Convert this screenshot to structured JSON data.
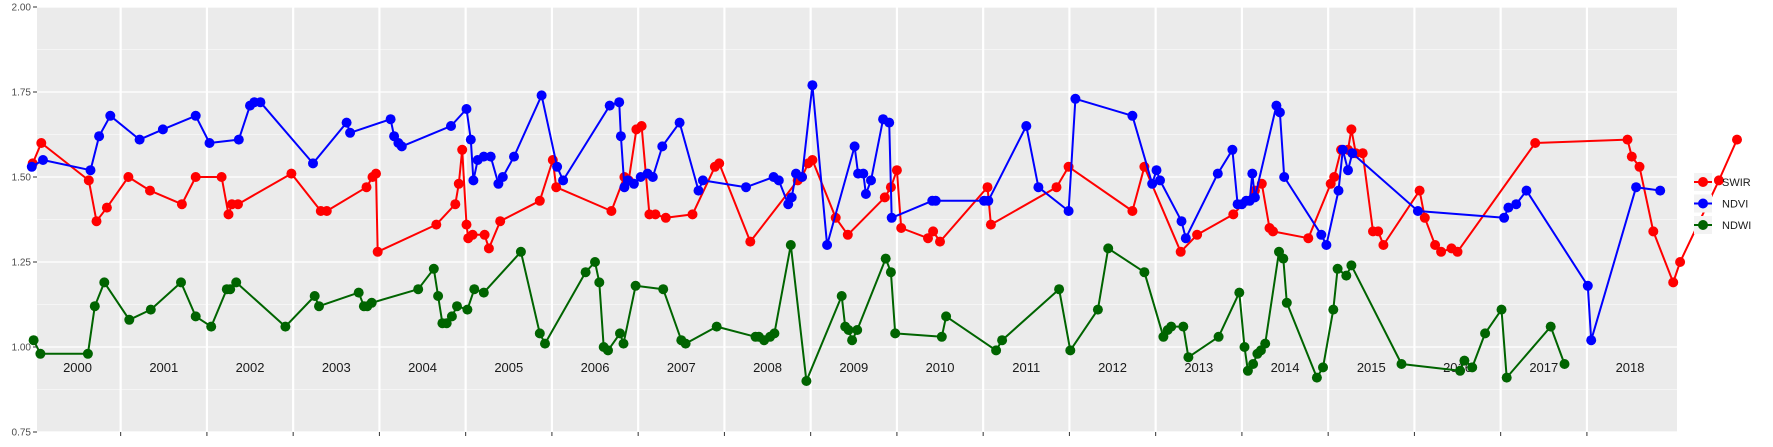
{
  "chart_data": {
    "type": "line",
    "title": "",
    "xlabel": "",
    "ylabel": "",
    "ylim": [
      0.75,
      2.0
    ],
    "yticks": [
      "0.75",
      "1.00",
      "1.25",
      "1.50",
      "1.75",
      "2.00"
    ],
    "year_labels": [
      "2000",
      "2001",
      "2002",
      "2003",
      "2004",
      "2005",
      "2006",
      "2007",
      "2008",
      "2009",
      "2010",
      "2011",
      "2012",
      "2013",
      "2014",
      "2015",
      "2016",
      "2017",
      "2018"
    ],
    "grid": true,
    "background": "#ebebeb",
    "legend_position": "right",
    "series": [
      {
        "name": "SWIR",
        "color": "#ff0000",
        "points": [
          [
            1999.98,
            1.54
          ],
          [
            2000.08,
            1.6
          ],
          [
            2000.63,
            1.49
          ],
          [
            2000.72,
            1.37
          ],
          [
            2000.84,
            1.41
          ],
          [
            2001.09,
            1.5
          ],
          [
            2001.34,
            1.46
          ],
          [
            2001.71,
            1.42
          ],
          [
            2001.87,
            1.5
          ],
          [
            2002.17,
            1.5
          ],
          [
            2002.25,
            1.39
          ],
          [
            2002.29,
            1.42
          ],
          [
            2002.36,
            1.42
          ],
          [
            2002.98,
            1.51
          ],
          [
            2003.32,
            1.4
          ],
          [
            2003.39,
            1.4
          ],
          [
            2003.85,
            1.47
          ],
          [
            2003.92,
            1.5
          ],
          [
            2003.96,
            1.51
          ],
          [
            2003.98,
            1.28
          ],
          [
            2004.66,
            1.36
          ],
          [
            2004.88,
            1.42
          ],
          [
            2004.92,
            1.48
          ],
          [
            2004.96,
            1.58
          ],
          [
            2005.01,
            1.36
          ],
          [
            2005.03,
            1.32
          ],
          [
            2005.08,
            1.33
          ],
          [
            2005.22,
            1.33
          ],
          [
            2005.27,
            1.29
          ],
          [
            2005.4,
            1.37
          ],
          [
            2005.86,
            1.43
          ],
          [
            2006.01,
            1.55
          ],
          [
            2006.05,
            1.47
          ],
          [
            2006.69,
            1.4
          ],
          [
            2006.84,
            1.5
          ],
          [
            2006.89,
            1.49
          ],
          [
            2006.98,
            1.64
          ],
          [
            2007.04,
            1.65
          ],
          [
            2007.13,
            1.39
          ],
          [
            2007.2,
            1.39
          ],
          [
            2007.32,
            1.38
          ],
          [
            2007.63,
            1.39
          ],
          [
            2007.89,
            1.53
          ],
          [
            2007.94,
            1.54
          ],
          [
            2008.3,
            1.31
          ],
          [
            2008.85,
            1.49
          ],
          [
            2008.9,
            1.5
          ],
          [
            2008.97,
            1.54
          ],
          [
            2009.02,
            1.55
          ],
          [
            2009.29,
            1.38
          ],
          [
            2009.43,
            1.33
          ],
          [
            2009.86,
            1.44
          ],
          [
            2009.93,
            1.47
          ],
          [
            2010.0,
            1.52
          ],
          [
            2010.05,
            1.35
          ],
          [
            2010.36,
            1.32
          ],
          [
            2010.42,
            1.34
          ],
          [
            2010.5,
            1.31
          ],
          [
            2011.05,
            1.47
          ],
          [
            2011.09,
            1.36
          ],
          [
            2011.85,
            1.47
          ],
          [
            2011.99,
            1.53
          ],
          [
            2012.73,
            1.4
          ],
          [
            2012.87,
            1.53
          ],
          [
            2013.29,
            1.28
          ],
          [
            2013.48,
            1.33
          ],
          [
            2013.9,
            1.39
          ],
          [
            2014.15,
            1.46
          ],
          [
            2014.23,
            1.48
          ],
          [
            2014.32,
            1.35
          ],
          [
            2014.36,
            1.34
          ],
          [
            2014.77,
            1.32
          ],
          [
            2015.03,
            1.48
          ],
          [
            2015.07,
            1.5
          ],
          [
            2015.15,
            1.58
          ],
          [
            2015.23,
            1.58
          ],
          [
            2015.27,
            1.64
          ],
          [
            2015.32,
            1.57
          ],
          [
            2015.4,
            1.57
          ],
          [
            2015.52,
            1.34
          ],
          [
            2015.58,
            1.34
          ],
          [
            2015.64,
            1.3
          ],
          [
            2016.06,
            1.46
          ],
          [
            2016.12,
            1.38
          ],
          [
            2016.24,
            1.3
          ],
          [
            2016.31,
            1.28
          ],
          [
            2016.43,
            1.29
          ],
          [
            2016.5,
            1.28
          ],
          [
            2017.4,
            1.6
          ],
          [
            2018.47,
            1.61
          ],
          [
            2018.52,
            1.56
          ],
          [
            2018.61,
            1.53
          ],
          [
            2018.77,
            1.34
          ],
          [
            2019.0,
            1.19
          ],
          [
            2019.08,
            1.25
          ],
          [
            2019.53,
            1.49
          ],
          [
            2019.74,
            1.61
          ]
        ]
      },
      {
        "name": "NDVI",
        "color": "#0000ff",
        "points": [
          [
            1999.97,
            1.53
          ],
          [
            2000.1,
            1.55
          ],
          [
            2000.65,
            1.52
          ],
          [
            2000.75,
            1.62
          ],
          [
            2000.88,
            1.68
          ],
          [
            2001.22,
            1.61
          ],
          [
            2001.49,
            1.64
          ],
          [
            2001.87,
            1.68
          ],
          [
            2002.03,
            1.6
          ],
          [
            2002.37,
            1.61
          ],
          [
            2002.5,
            1.71
          ],
          [
            2002.55,
            1.72
          ],
          [
            2002.62,
            1.72
          ],
          [
            2003.23,
            1.54
          ],
          [
            2003.62,
            1.66
          ],
          [
            2003.66,
            1.63
          ],
          [
            2004.13,
            1.67
          ],
          [
            2004.17,
            1.62
          ],
          [
            2004.22,
            1.6
          ],
          [
            2004.26,
            1.59
          ],
          [
            2004.83,
            1.65
          ],
          [
            2005.01,
            1.7
          ],
          [
            2005.06,
            1.61
          ],
          [
            2005.09,
            1.49
          ],
          [
            2005.14,
            1.55
          ],
          [
            2005.21,
            1.56
          ],
          [
            2005.29,
            1.56
          ],
          [
            2005.38,
            1.48
          ],
          [
            2005.43,
            1.5
          ],
          [
            2005.56,
            1.56
          ],
          [
            2005.88,
            1.74
          ],
          [
            2006.06,
            1.53
          ],
          [
            2006.13,
            1.49
          ],
          [
            2006.67,
            1.71
          ],
          [
            2006.78,
            1.72
          ],
          [
            2006.8,
            1.62
          ],
          [
            2006.84,
            1.47
          ],
          [
            2006.88,
            1.49
          ],
          [
            2006.95,
            1.48
          ],
          [
            2007.03,
            1.5
          ],
          [
            2007.11,
            1.51
          ],
          [
            2007.17,
            1.5
          ],
          [
            2007.28,
            1.59
          ],
          [
            2007.48,
            1.66
          ],
          [
            2007.7,
            1.46
          ],
          [
            2007.75,
            1.49
          ],
          [
            2008.25,
            1.47
          ],
          [
            2008.57,
            1.5
          ],
          [
            2008.63,
            1.49
          ],
          [
            2008.74,
            1.42
          ],
          [
            2008.78,
            1.44
          ],
          [
            2008.83,
            1.51
          ],
          [
            2008.9,
            1.5
          ],
          [
            2009.02,
            1.77
          ],
          [
            2009.19,
            1.3
          ],
          [
            2009.51,
            1.59
          ],
          [
            2009.55,
            1.51
          ],
          [
            2009.61,
            1.51
          ],
          [
            2009.64,
            1.45
          ],
          [
            2009.7,
            1.49
          ],
          [
            2009.84,
            1.67
          ],
          [
            2009.91,
            1.66
          ],
          [
            2009.94,
            1.38
          ],
          [
            2010.41,
            1.43
          ],
          [
            2010.45,
            1.43
          ],
          [
            2011.01,
            1.43
          ],
          [
            2011.06,
            1.43
          ],
          [
            2011.5,
            1.65
          ],
          [
            2011.64,
            1.47
          ],
          [
            2011.99,
            1.4
          ],
          [
            2012.07,
            1.73
          ],
          [
            2012.73,
            1.68
          ],
          [
            2012.96,
            1.48
          ],
          [
            2013.01,
            1.52
          ],
          [
            2013.05,
            1.49
          ],
          [
            2013.3,
            1.37
          ],
          [
            2013.35,
            1.32
          ],
          [
            2013.72,
            1.51
          ],
          [
            2013.89,
            1.58
          ],
          [
            2013.95,
            1.42
          ],
          [
            2014.0,
            1.42
          ],
          [
            2014.05,
            1.43
          ],
          [
            2014.09,
            1.43
          ],
          [
            2014.12,
            1.51
          ],
          [
            2014.15,
            1.44
          ],
          [
            2014.4,
            1.71
          ],
          [
            2014.44,
            1.69
          ],
          [
            2014.49,
            1.5
          ],
          [
            2014.92,
            1.33
          ],
          [
            2014.98,
            1.3
          ],
          [
            2015.12,
            1.46
          ],
          [
            2015.17,
            1.58
          ],
          [
            2015.23,
            1.52
          ],
          [
            2015.28,
            1.57
          ],
          [
            2016.04,
            1.4
          ],
          [
            2017.04,
            1.38
          ],
          [
            2017.09,
            1.41
          ],
          [
            2017.18,
            1.42
          ],
          [
            2017.3,
            1.46
          ],
          [
            2018.01,
            1.18
          ],
          [
            2018.05,
            1.02
          ],
          [
            2018.57,
            1.47
          ],
          [
            2018.85,
            1.46
          ]
        ]
      },
      {
        "name": "NDWI",
        "color": "#006400",
        "points": [
          [
            1999.99,
            1.02
          ],
          [
            2000.07,
            0.98
          ],
          [
            2000.62,
            0.98
          ],
          [
            2000.7,
            1.12
          ],
          [
            2000.81,
            1.19
          ],
          [
            2001.1,
            1.08
          ],
          [
            2001.35,
            1.11
          ],
          [
            2001.7,
            1.19
          ],
          [
            2001.87,
            1.09
          ],
          [
            2002.05,
            1.06
          ],
          [
            2002.23,
            1.17
          ],
          [
            2002.27,
            1.17
          ],
          [
            2002.34,
            1.19
          ],
          [
            2002.91,
            1.06
          ],
          [
            2003.25,
            1.15
          ],
          [
            2003.3,
            1.12
          ],
          [
            2003.76,
            1.16
          ],
          [
            2003.82,
            1.12
          ],
          [
            2003.86,
            1.12
          ],
          [
            2003.91,
            1.13
          ],
          [
            2004.45,
            1.17
          ],
          [
            2004.63,
            1.23
          ],
          [
            2004.68,
            1.15
          ],
          [
            2004.73,
            1.07
          ],
          [
            2004.78,
            1.07
          ],
          [
            2004.84,
            1.09
          ],
          [
            2004.9,
            1.12
          ],
          [
            2005.02,
            1.11
          ],
          [
            2005.1,
            1.17
          ],
          [
            2005.21,
            1.16
          ],
          [
            2005.64,
            1.28
          ],
          [
            2005.86,
            1.04
          ],
          [
            2005.92,
            1.01
          ],
          [
            2006.39,
            1.22
          ],
          [
            2006.5,
            1.25
          ],
          [
            2006.55,
            1.19
          ],
          [
            2006.6,
            1.0
          ],
          [
            2006.65,
            0.99
          ],
          [
            2006.79,
            1.04
          ],
          [
            2006.83,
            1.01
          ],
          [
            2006.97,
            1.18
          ],
          [
            2007.29,
            1.17
          ],
          [
            2007.5,
            1.02
          ],
          [
            2007.55,
            1.01
          ],
          [
            2007.91,
            1.06
          ],
          [
            2008.36,
            1.03
          ],
          [
            2008.4,
            1.03
          ],
          [
            2008.46,
            1.02
          ],
          [
            2008.53,
            1.03
          ],
          [
            2008.58,
            1.04
          ],
          [
            2008.77,
            1.3
          ],
          [
            2008.95,
            0.9
          ],
          [
            2009.36,
            1.15
          ],
          [
            2009.4,
            1.06
          ],
          [
            2009.44,
            1.05
          ],
          [
            2009.48,
            1.02
          ],
          [
            2009.54,
            1.05
          ],
          [
            2009.87,
            1.26
          ],
          [
            2009.93,
            1.22
          ],
          [
            2009.98,
            1.04
          ],
          [
            2010.52,
            1.03
          ],
          [
            2010.57,
            1.09
          ],
          [
            2011.15,
            0.99
          ],
          [
            2011.22,
            1.02
          ],
          [
            2011.88,
            1.17
          ],
          [
            2012.01,
            0.99
          ],
          [
            2012.33,
            1.11
          ],
          [
            2012.45,
            1.29
          ],
          [
            2012.87,
            1.22
          ],
          [
            2013.09,
            1.03
          ],
          [
            2013.14,
            1.05
          ],
          [
            2013.18,
            1.06
          ],
          [
            2013.32,
            1.06
          ],
          [
            2013.38,
            0.97
          ],
          [
            2013.73,
            1.03
          ],
          [
            2013.97,
            1.16
          ],
          [
            2014.03,
            1.0
          ],
          [
            2014.07,
            0.93
          ],
          [
            2014.13,
            0.95
          ],
          [
            2014.18,
            0.98
          ],
          [
            2014.22,
            0.99
          ],
          [
            2014.27,
            1.01
          ],
          [
            2014.43,
            1.28
          ],
          [
            2014.48,
            1.26
          ],
          [
            2014.52,
            1.13
          ],
          [
            2014.87,
            0.91
          ],
          [
            2014.94,
            0.94
          ],
          [
            2015.06,
            1.11
          ],
          [
            2015.11,
            1.23
          ],
          [
            2015.21,
            1.21
          ],
          [
            2015.27,
            1.24
          ],
          [
            2015.85,
            0.95
          ],
          [
            2016.53,
            0.93
          ],
          [
            2016.58,
            0.96
          ],
          [
            2016.67,
            0.94
          ],
          [
            2016.82,
            1.04
          ],
          [
            2017.01,
            1.11
          ],
          [
            2017.07,
            0.91
          ],
          [
            2017.58,
            1.06
          ],
          [
            2017.74,
            0.95
          ]
        ]
      }
    ]
  }
}
